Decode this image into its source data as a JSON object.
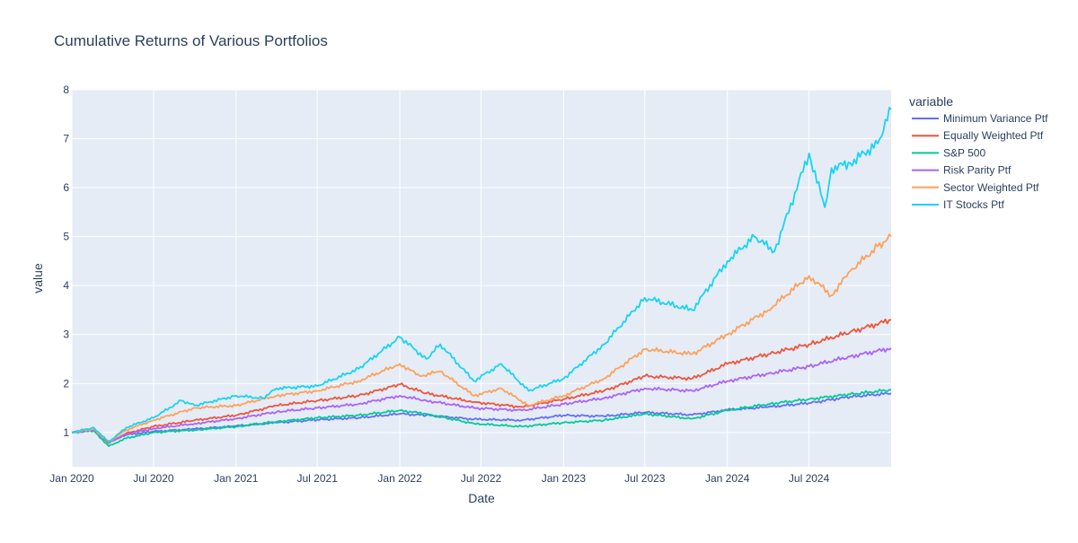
{
  "chart_data": {
    "type": "line",
    "title": "Cumulative Returns of Various Portfolios",
    "xlabel": "Date",
    "ylabel": "value",
    "x_range": [
      "2020-01-01",
      "2024-12-31"
    ],
    "ylim": [
      0.3,
      8.0
    ],
    "x_ticks": [
      {
        "date": "2020-01-01",
        "label": "Jan 2020"
      },
      {
        "date": "2020-07-01",
        "label": "Jul 2020"
      },
      {
        "date": "2021-01-01",
        "label": "Jan 2021"
      },
      {
        "date": "2021-07-01",
        "label": "Jul 2021"
      },
      {
        "date": "2022-01-01",
        "label": "Jan 2022"
      },
      {
        "date": "2022-07-01",
        "label": "Jul 2022"
      },
      {
        "date": "2023-01-01",
        "label": "Jan 2023"
      },
      {
        "date": "2023-07-01",
        "label": "Jul 2023"
      },
      {
        "date": "2024-01-01",
        "label": "Jan 2024"
      },
      {
        "date": "2024-07-01",
        "label": "Jul 2024"
      }
    ],
    "y_ticks": [
      1,
      2,
      3,
      4,
      5,
      6,
      7,
      8
    ],
    "grid": true,
    "legend": {
      "title": "variable",
      "placement": "right"
    },
    "series": [
      {
        "name": "Minimum Variance Ptf",
        "color": "#636efa",
        "points": [
          [
            "2020-01-01",
            1.0
          ],
          [
            "2020-02-19",
            1.05
          ],
          [
            "2020-03-23",
            0.82
          ],
          [
            "2020-05-01",
            0.95
          ],
          [
            "2020-07-01",
            1.02
          ],
          [
            "2020-10-01",
            1.07
          ],
          [
            "2021-01-01",
            1.13
          ],
          [
            "2021-04-01",
            1.2
          ],
          [
            "2021-07-01",
            1.26
          ],
          [
            "2021-10-01",
            1.3
          ],
          [
            "2022-01-01",
            1.38
          ],
          [
            "2022-03-01",
            1.35
          ],
          [
            "2022-06-15",
            1.27
          ],
          [
            "2022-09-30",
            1.25
          ],
          [
            "2023-01-01",
            1.35
          ],
          [
            "2023-04-01",
            1.33
          ],
          [
            "2023-07-01",
            1.41
          ],
          [
            "2023-10-15",
            1.36
          ],
          [
            "2024-01-01",
            1.46
          ],
          [
            "2024-04-01",
            1.52
          ],
          [
            "2024-07-01",
            1.6
          ],
          [
            "2024-10-01",
            1.73
          ],
          [
            "2024-12-31",
            1.8
          ]
        ]
      },
      {
        "name": "Equally Weighted Ptf",
        "color": "#ef553b",
        "points": [
          [
            "2020-01-01",
            1.0
          ],
          [
            "2020-02-19",
            1.06
          ],
          [
            "2020-03-23",
            0.78
          ],
          [
            "2020-05-01",
            0.98
          ],
          [
            "2020-07-01",
            1.12
          ],
          [
            "2020-10-01",
            1.25
          ],
          [
            "2021-01-01",
            1.35
          ],
          [
            "2021-04-01",
            1.55
          ],
          [
            "2021-07-01",
            1.65
          ],
          [
            "2021-10-01",
            1.75
          ],
          [
            "2022-01-01",
            1.98
          ],
          [
            "2022-03-01",
            1.8
          ],
          [
            "2022-06-15",
            1.62
          ],
          [
            "2022-09-30",
            1.52
          ],
          [
            "2023-01-01",
            1.68
          ],
          [
            "2023-04-01",
            1.85
          ],
          [
            "2023-07-01",
            2.15
          ],
          [
            "2023-10-15",
            2.1
          ],
          [
            "2024-01-01",
            2.4
          ],
          [
            "2024-04-01",
            2.6
          ],
          [
            "2024-07-01",
            2.8
          ],
          [
            "2024-10-01",
            3.05
          ],
          [
            "2024-12-31",
            3.3
          ]
        ]
      },
      {
        "name": "S&P 500",
        "color": "#00cc96",
        "points": [
          [
            "2020-01-01",
            1.0
          ],
          [
            "2020-02-19",
            1.03
          ],
          [
            "2020-03-23",
            0.72
          ],
          [
            "2020-05-01",
            0.88
          ],
          [
            "2020-07-01",
            1.0
          ],
          [
            "2020-10-01",
            1.05
          ],
          [
            "2021-01-01",
            1.12
          ],
          [
            "2021-04-01",
            1.22
          ],
          [
            "2021-07-01",
            1.3
          ],
          [
            "2021-10-01",
            1.35
          ],
          [
            "2022-01-01",
            1.45
          ],
          [
            "2022-03-01",
            1.38
          ],
          [
            "2022-06-15",
            1.18
          ],
          [
            "2022-09-30",
            1.12
          ],
          [
            "2023-01-01",
            1.2
          ],
          [
            "2023-04-01",
            1.25
          ],
          [
            "2023-07-01",
            1.38
          ],
          [
            "2023-10-15",
            1.28
          ],
          [
            "2024-01-01",
            1.45
          ],
          [
            "2024-04-01",
            1.58
          ],
          [
            "2024-07-01",
            1.68
          ],
          [
            "2024-10-01",
            1.78
          ],
          [
            "2024-12-31",
            1.87
          ]
        ]
      },
      {
        "name": "Risk Parity Ptf",
        "color": "#ab63fa",
        "points": [
          [
            "2020-01-01",
            1.0
          ],
          [
            "2020-02-19",
            1.05
          ],
          [
            "2020-03-23",
            0.8
          ],
          [
            "2020-05-01",
            0.96
          ],
          [
            "2020-07-01",
            1.08
          ],
          [
            "2020-10-01",
            1.18
          ],
          [
            "2021-01-01",
            1.28
          ],
          [
            "2021-04-01",
            1.42
          ],
          [
            "2021-07-01",
            1.5
          ],
          [
            "2021-10-01",
            1.58
          ],
          [
            "2022-01-01",
            1.75
          ],
          [
            "2022-03-01",
            1.65
          ],
          [
            "2022-06-15",
            1.5
          ],
          [
            "2022-09-30",
            1.45
          ],
          [
            "2023-01-01",
            1.58
          ],
          [
            "2023-04-01",
            1.7
          ],
          [
            "2023-07-01",
            1.9
          ],
          [
            "2023-10-15",
            1.85
          ],
          [
            "2024-01-01",
            2.05
          ],
          [
            "2024-04-01",
            2.2
          ],
          [
            "2024-07-01",
            2.35
          ],
          [
            "2024-10-01",
            2.55
          ],
          [
            "2024-12-31",
            2.72
          ]
        ]
      },
      {
        "name": "Sector Weighted Ptf",
        "color": "#ffa15a",
        "points": [
          [
            "2020-01-01",
            1.0
          ],
          [
            "2020-02-19",
            1.07
          ],
          [
            "2020-03-23",
            0.8
          ],
          [
            "2020-05-01",
            1.05
          ],
          [
            "2020-07-01",
            1.25
          ],
          [
            "2020-10-01",
            1.5
          ],
          [
            "2021-01-01",
            1.55
          ],
          [
            "2021-04-01",
            1.75
          ],
          [
            "2021-07-01",
            1.85
          ],
          [
            "2021-10-01",
            2.05
          ],
          [
            "2022-01-01",
            2.4
          ],
          [
            "2022-02-15",
            2.15
          ],
          [
            "2022-04-01",
            2.25
          ],
          [
            "2022-06-15",
            1.75
          ],
          [
            "2022-08-15",
            1.9
          ],
          [
            "2022-10-15",
            1.55
          ],
          [
            "2023-01-01",
            1.75
          ],
          [
            "2023-04-01",
            2.1
          ],
          [
            "2023-07-01",
            2.7
          ],
          [
            "2023-10-15",
            2.6
          ],
          [
            "2024-01-01",
            3.0
          ],
          [
            "2024-04-01",
            3.5
          ],
          [
            "2024-07-01",
            4.2
          ],
          [
            "2024-08-20",
            3.8
          ],
          [
            "2024-10-01",
            4.3
          ],
          [
            "2024-12-01",
            4.8
          ],
          [
            "2024-12-31",
            5.0
          ]
        ]
      },
      {
        "name": "IT Stocks Ptf",
        "color": "#19d3f3",
        "points": [
          [
            "2020-01-01",
            1.0
          ],
          [
            "2020-02-19",
            1.1
          ],
          [
            "2020-03-23",
            0.8
          ],
          [
            "2020-05-01",
            1.1
          ],
          [
            "2020-07-01",
            1.3
          ],
          [
            "2020-09-01",
            1.65
          ],
          [
            "2020-10-01",
            1.55
          ],
          [
            "2021-01-01",
            1.75
          ],
          [
            "2021-03-01",
            1.7
          ],
          [
            "2021-04-01",
            1.9
          ],
          [
            "2021-07-01",
            1.95
          ],
          [
            "2021-10-01",
            2.3
          ],
          [
            "2022-01-01",
            2.95
          ],
          [
            "2022-03-01",
            2.5
          ],
          [
            "2022-04-01",
            2.8
          ],
          [
            "2022-06-15",
            2.05
          ],
          [
            "2022-08-15",
            2.4
          ],
          [
            "2022-10-15",
            1.85
          ],
          [
            "2023-01-01",
            2.1
          ],
          [
            "2023-04-01",
            2.8
          ],
          [
            "2023-07-01",
            3.75
          ],
          [
            "2023-10-15",
            3.5
          ],
          [
            "2024-01-01",
            4.5
          ],
          [
            "2024-03-01",
            5.0
          ],
          [
            "2024-04-15",
            4.7
          ],
          [
            "2024-07-01",
            6.7
          ],
          [
            "2024-08-05",
            5.6
          ],
          [
            "2024-08-20",
            6.4
          ],
          [
            "2024-10-01",
            6.5
          ],
          [
            "2024-12-01",
            6.9
          ],
          [
            "2024-12-31",
            7.6
          ]
        ]
      }
    ]
  }
}
